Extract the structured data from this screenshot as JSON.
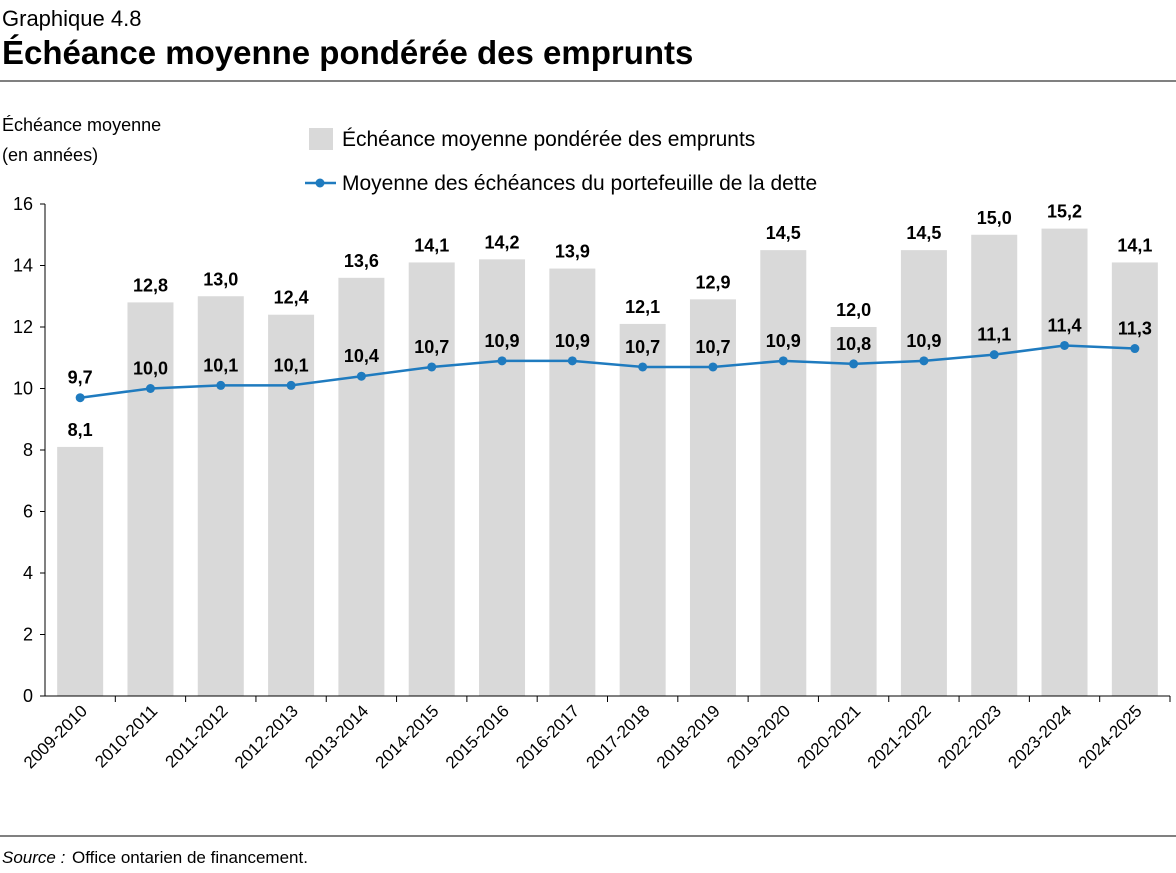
{
  "chart_data": {
    "type": "bar",
    "supertitle": "Graphique 4.8",
    "title": "Échéance moyenne pondérée des emprunts",
    "y_axis_label": [
      "Échéance moyenne",
      "(en années)"
    ],
    "categories": [
      "2009-2010",
      "2010-2011",
      "2011-2012",
      "2012-2013",
      "2013-2014",
      "2014-2015",
      "2015-2016",
      "2016-2017",
      "2017-2018",
      "2018-2019",
      "2019-2020",
      "2020-2021",
      "2021-2022",
      "2022-2023",
      "2023-2024",
      "2024-2025"
    ],
    "series": [
      {
        "name": "Échéance moyenne pondérée des emprunts",
        "type": "bar",
        "color": "#d9d9d9",
        "values": [
          8.1,
          12.8,
          13.0,
          12.4,
          13.6,
          14.1,
          14.2,
          13.9,
          12.1,
          12.9,
          14.5,
          12.0,
          14.5,
          15.0,
          15.2,
          14.1
        ],
        "value_labels": [
          "8,1",
          "12,8",
          "13,0",
          "12,4",
          "13,6",
          "14,1",
          "14,2",
          "13,9",
          "12,1",
          "12,9",
          "14,5",
          "12,0",
          "14,5",
          "15,0",
          "15,2",
          "14,1"
        ]
      },
      {
        "name": "Moyenne des échéances du portefeuille de la dette",
        "type": "line",
        "color": "#1f7bbf",
        "values": [
          9.7,
          10.0,
          10.1,
          10.1,
          10.4,
          10.7,
          10.9,
          10.9,
          10.7,
          10.7,
          10.9,
          10.8,
          10.9,
          11.1,
          11.4,
          11.3
        ],
        "value_labels": [
          "9,7",
          "10,0",
          "10,1",
          "10,1",
          "10,4",
          "10,7",
          "10,9",
          "10,9",
          "10,7",
          "10,7",
          "10,9",
          "10,8",
          "10,9",
          "11,1",
          "11,4",
          "11,3"
        ]
      }
    ],
    "ylim": [
      0,
      16
    ],
    "yticks": [
      0,
      2,
      4,
      6,
      8,
      10,
      12,
      14,
      16
    ],
    "source": {
      "label": "Source :",
      "text": "Office ontarien de financement."
    }
  }
}
